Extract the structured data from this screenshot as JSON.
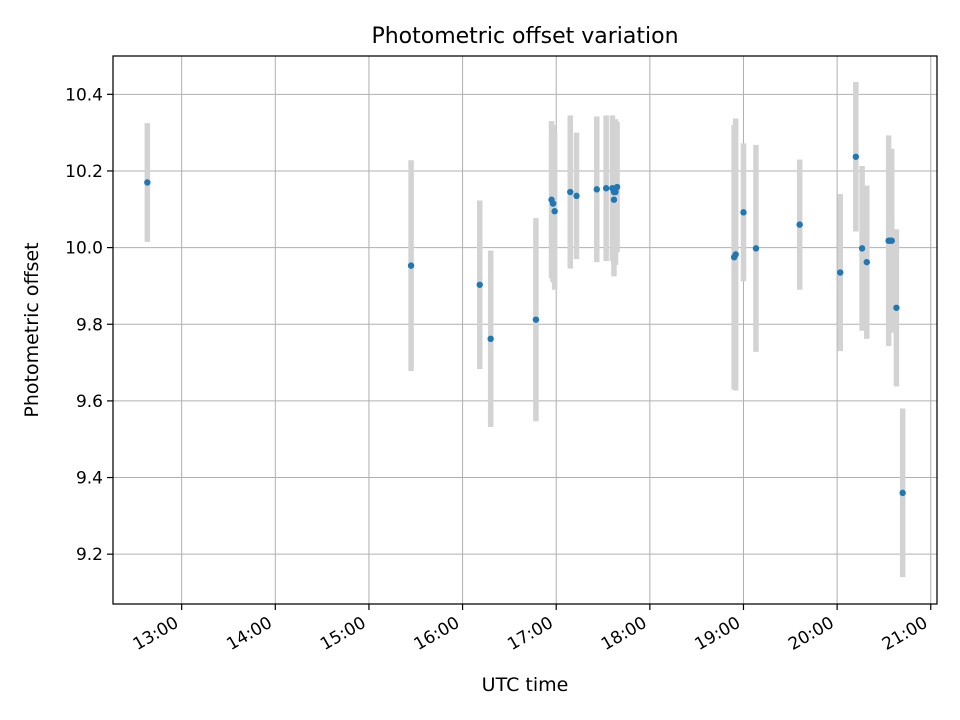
{
  "chart_data": {
    "type": "scatter",
    "title": "Photometric offset variation",
    "xlabel": "UTC time",
    "ylabel": "Photometric offset",
    "xlim": [
      "12:16",
      "21:04"
    ],
    "ylim": [
      9.07,
      10.5
    ],
    "xticks": [
      "13:00",
      "14:00",
      "15:00",
      "16:00",
      "17:00",
      "18:00",
      "19:00",
      "20:00",
      "21:00"
    ],
    "yticks": [
      "9.2",
      "9.4",
      "9.6",
      "9.8",
      "10.0",
      "10.2",
      "10.4"
    ],
    "grid": true,
    "legend": "none",
    "colors": {
      "point": "#1f77b4",
      "errorbar": "#d3d3d3",
      "grid": "#b0b0b0"
    },
    "series": [
      {
        "x": [
          "12:38",
          "15:27",
          "16:11",
          "16:18",
          "16:47",
          "16:57",
          "16:58",
          "16:58",
          "16:59",
          "17:09",
          "17:13",
          "17:26",
          "17:32",
          "17:36",
          "17:37",
          "17:37",
          "17:38",
          "17:39",
          "18:54",
          "18:55",
          "19:00",
          "19:08",
          "19:36",
          "20:02",
          "20:12",
          "20:16",
          "20:19",
          "20:33",
          "20:34",
          "20:35",
          "20:38",
          "20:42"
        ],
        "y": [
          10.17,
          9.953,
          9.903,
          9.762,
          9.812,
          10.125,
          10.115,
          10.115,
          10.095,
          10.145,
          10.135,
          10.152,
          10.155,
          10.155,
          10.145,
          10.125,
          10.145,
          10.158,
          9.975,
          9.982,
          10.092,
          9.998,
          10.06,
          9.935,
          10.237,
          9.998,
          9.962,
          10.018,
          10.018,
          10.018,
          9.843,
          9.36
        ],
        "yerr": [
          0.155,
          0.275,
          0.22,
          0.23,
          0.265,
          0.205,
          0.205,
          0.205,
          0.205,
          0.2,
          0.165,
          0.19,
          0.19,
          0.19,
          0.19,
          0.2,
          0.19,
          0.17,
          0.345,
          0.355,
          0.18,
          0.27,
          0.17,
          0.205,
          0.195,
          0.215,
          0.2,
          0.275,
          0.24,
          0.24,
          0.205,
          0.22
        ]
      }
    ]
  }
}
